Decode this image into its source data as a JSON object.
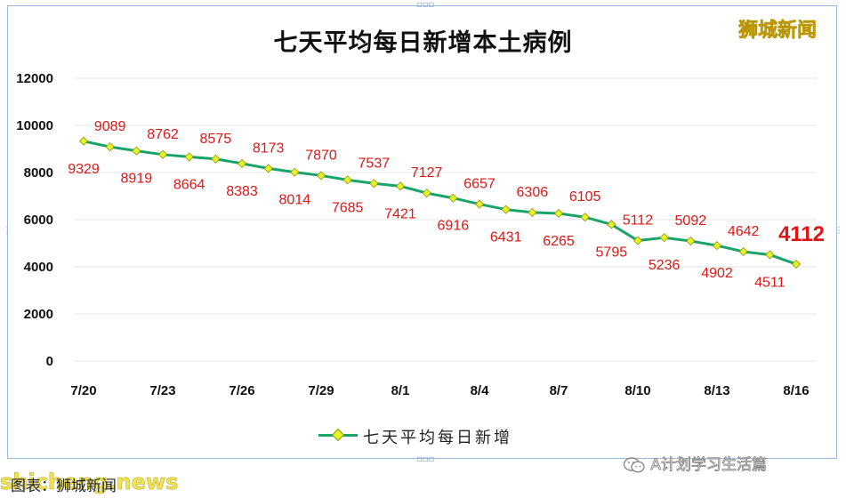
{
  "brand": "狮城新闻",
  "source_text": "图表：狮城新闻",
  "watermark_left": "shicheng.news",
  "wechat_account": "A计划学习生活篇",
  "colors": {
    "line": "#1aa36b",
    "marker": "#e8f22a",
    "labels": "#e01616",
    "grid": "#e6e6e6"
  },
  "chart_data": {
    "type": "line",
    "title": "七天平均每日新增本土病例",
    "legend": [
      "七天平均每日新增"
    ],
    "legend_position": "bottom",
    "grid": true,
    "ylim": [
      0,
      12000
    ],
    "yticks": [
      "0",
      "2000",
      "4000",
      "6000",
      "8000",
      "10000",
      "12000"
    ],
    "x": [
      "7/20",
      "7/21",
      "7/22",
      "7/23",
      "7/24",
      "7/25",
      "7/26",
      "7/27",
      "7/28",
      "7/29",
      "7/30",
      "7/31",
      "8/1",
      "8/2",
      "8/3",
      "8/4",
      "8/5",
      "8/6",
      "8/7",
      "8/8",
      "8/9",
      "8/10",
      "8/11",
      "8/12",
      "8/13",
      "8/14",
      "8/15",
      "8/16"
    ],
    "xtick_labels": [
      "7/20",
      "7/23",
      "7/26",
      "7/29",
      "8/1",
      "8/4",
      "8/7",
      "8/10",
      "8/13",
      "8/16"
    ],
    "series": [
      {
        "name": "七天平均每日新增",
        "values": [
          9329,
          9089,
          8919,
          8762,
          8664,
          8575,
          8383,
          8173,
          8014,
          7870,
          7685,
          7537,
          7421,
          7127,
          6916,
          6657,
          6431,
          6306,
          6265,
          6105,
          5795,
          5112,
          5236,
          5092,
          4902,
          4642,
          4511,
          4112
        ],
        "labels": [
          "9329",
          "9089",
          "8919",
          "8762",
          "8664",
          "8575",
          "8383",
          "8173",
          "8014",
          "7870",
          "7685",
          "7537",
          "7421",
          "7127",
          "6916",
          "6657",
          "6431",
          "6306",
          "6265",
          "6105",
          "5795",
          "5112",
          "5236",
          "5092",
          "4902",
          "4642",
          "4511",
          "4112"
        ],
        "label_positions": [
          "below",
          "above",
          "below",
          "above",
          "below",
          "above",
          "below",
          "above",
          "below",
          "above",
          "below",
          "above",
          "below",
          "above",
          "below",
          "above",
          "below",
          "above",
          "below",
          "above",
          "below",
          "above",
          "below",
          "above",
          "below",
          "above",
          "below",
          "above"
        ]
      }
    ]
  }
}
